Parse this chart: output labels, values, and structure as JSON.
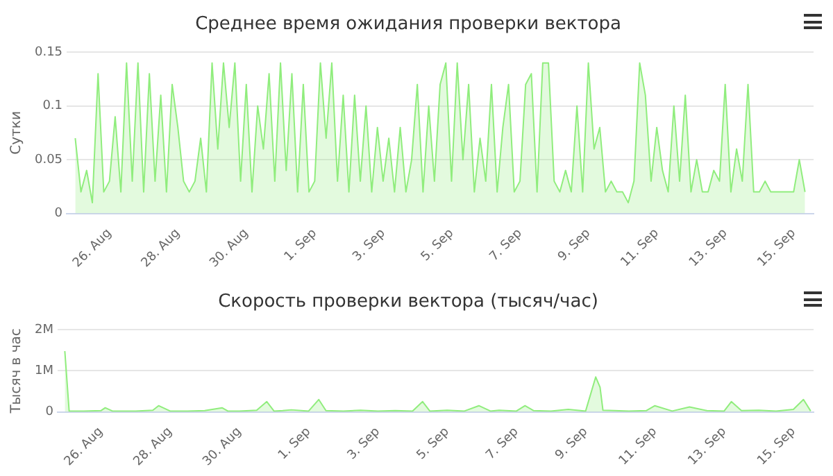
{
  "chart_data": [
    {
      "type": "area",
      "title": "Среднее время ожидания проверки вектора",
      "ylabel": "Сутки",
      "grid": "y",
      "xlim": [
        "--08-24T18:00",
        "--09-15T14:00"
      ],
      "ylim": [
        0,
        0.15
      ],
      "yticks": [
        0,
        0.05,
        0.1,
        0.15
      ],
      "xticks": [
        {
          "value": "--08-26",
          "label": "26. Aug"
        },
        {
          "value": "--08-28",
          "label": "28. Aug"
        },
        {
          "value": "--08-30",
          "label": "30. Aug"
        },
        {
          "value": "--09-01",
          "label": "1. Sep"
        },
        {
          "value": "--09-03",
          "label": "3. Sep"
        },
        {
          "value": "--09-05",
          "label": "5. Sep"
        },
        {
          "value": "--09-07",
          "label": "7. Sep"
        },
        {
          "value": "--09-09",
          "label": "9. Sep"
        },
        {
          "value": "--09-11",
          "label": "11. Sep"
        },
        {
          "value": "--09-13",
          "label": "13. Sep"
        },
        {
          "value": "--09-15",
          "label": "15. Sep"
        }
      ],
      "x": [
        "--08-25T00:00",
        "--08-25T04:00",
        "--08-25T08:00",
        "--08-25T12:00",
        "--08-25T16:00",
        "--08-25T20:00",
        "--08-26T00:00",
        "--08-26T04:00",
        "--08-26T08:00",
        "--08-26T12:00",
        "--08-26T16:00",
        "--08-26T20:00",
        "--08-27T00:00",
        "--08-27T04:00",
        "--08-27T08:00",
        "--08-27T12:00",
        "--08-27T16:00",
        "--08-27T20:00",
        "--08-28T00:00",
        "--08-28T04:00",
        "--08-28T08:00",
        "--08-28T12:00",
        "--08-28T16:00",
        "--08-28T20:00",
        "--08-29T00:00",
        "--08-29T04:00",
        "--08-29T08:00",
        "--08-29T12:00",
        "--08-29T16:00",
        "--08-29T20:00",
        "--08-30T00:00",
        "--08-30T04:00",
        "--08-30T08:00",
        "--08-30T12:00",
        "--08-30T16:00",
        "--08-30T20:00",
        "--08-31T00:00",
        "--08-31T04:00",
        "--08-31T08:00",
        "--08-31T12:00",
        "--08-31T16:00",
        "--08-31T20:00",
        "--09-01T00:00",
        "--09-01T04:00",
        "--09-01T08:00",
        "--09-01T12:00",
        "--09-01T16:00",
        "--09-01T20:00",
        "--09-02T00:00",
        "--09-02T04:00",
        "--09-02T08:00",
        "--09-02T12:00",
        "--09-02T16:00",
        "--09-02T20:00",
        "--09-03T00:00",
        "--09-03T04:00",
        "--09-03T08:00",
        "--09-03T12:00",
        "--09-03T16:00",
        "--09-03T20:00",
        "--09-04T00:00",
        "--09-04T04:00",
        "--09-04T08:00",
        "--09-04T12:00",
        "--09-04T16:00",
        "--09-04T20:00",
        "--09-05T00:00",
        "--09-05T04:00",
        "--09-05T08:00",
        "--09-05T12:00",
        "--09-05T16:00",
        "--09-05T20:00",
        "--09-06T00:00",
        "--09-06T04:00",
        "--09-06T08:00",
        "--09-06T12:00",
        "--09-06T16:00",
        "--09-06T20:00",
        "--09-07T00:00",
        "--09-07T04:00",
        "--09-07T08:00",
        "--09-07T12:00",
        "--09-07T16:00",
        "--09-07T20:00",
        "--09-08T00:00",
        "--09-08T04:00",
        "--09-08T08:00",
        "--09-08T12:00",
        "--09-08T16:00",
        "--09-08T20:00",
        "--09-09T00:00",
        "--09-09T04:00",
        "--09-09T08:00",
        "--09-09T12:00",
        "--09-09T16:00",
        "--09-09T20:00",
        "--09-10T00:00",
        "--09-10T04:00",
        "--09-10T08:00",
        "--09-10T12:00",
        "--09-10T16:00",
        "--09-10T20:00",
        "--09-11T00:00",
        "--09-11T04:00",
        "--09-11T08:00",
        "--09-11T12:00",
        "--09-11T16:00",
        "--09-11T20:00",
        "--09-12T00:00",
        "--09-12T04:00",
        "--09-12T08:00",
        "--09-12T12:00",
        "--09-12T16:00",
        "--09-12T20:00",
        "--09-13T00:00",
        "--09-13T04:00",
        "--09-13T08:00",
        "--09-13T12:00",
        "--09-13T16:00",
        "--09-13T20:00",
        "--09-14T00:00",
        "--09-14T04:00",
        "--09-14T08:00",
        "--09-14T12:00",
        "--09-14T16:00",
        "--09-14T20:00",
        "--09-15T00:00",
        "--09-15T04:00",
        "--09-15T08:00"
      ],
      "series": [
        {
          "color": "#90ed7d",
          "values": [
            0.07,
            0.02,
            0.04,
            0.01,
            0.13,
            0.02,
            0.03,
            0.09,
            0.02,
            0.14,
            0.03,
            0.14,
            0.02,
            0.13,
            0.03,
            0.11,
            0.02,
            0.12,
            0.08,
            0.03,
            0.02,
            0.03,
            0.07,
            0.02,
            0.14,
            0.06,
            0.14,
            0.08,
            0.14,
            0.03,
            0.12,
            0.02,
            0.1,
            0.06,
            0.13,
            0.03,
            0.14,
            0.04,
            0.13,
            0.02,
            0.12,
            0.02,
            0.03,
            0.14,
            0.07,
            0.14,
            0.03,
            0.11,
            0.02,
            0.11,
            0.03,
            0.1,
            0.02,
            0.08,
            0.03,
            0.07,
            0.02,
            0.08,
            0.02,
            0.05,
            0.12,
            0.02,
            0.1,
            0.03,
            0.12,
            0.14,
            0.03,
            0.14,
            0.05,
            0.12,
            0.02,
            0.07,
            0.03,
            0.12,
            0.02,
            0.08,
            0.12,
            0.02,
            0.03,
            0.12,
            0.13,
            0.02,
            0.14,
            0.14,
            0.03,
            0.02,
            0.04,
            0.02,
            0.1,
            0.02,
            0.14,
            0.06,
            0.08,
            0.02,
            0.03,
            0.02,
            0.02,
            0.01,
            0.03,
            0.14,
            0.11,
            0.03,
            0.08,
            0.04,
            0.02,
            0.1,
            0.03,
            0.11,
            0.02,
            0.05,
            0.02,
            0.02,
            0.04,
            0.03,
            0.12,
            0.02,
            0.06,
            0.03,
            0.12,
            0.02,
            0.02,
            0.03,
            0.02,
            0.02,
            0.02,
            0.02,
            0.02,
            0.05,
            0.02
          ]
        }
      ]
    },
    {
      "type": "area",
      "title": "Скорость проверки вектора (тысяч/час)",
      "ylabel": "Тысяч в час",
      "grid": "y",
      "xlim": [
        "--08-24T18:00",
        "--09-15T14:00"
      ],
      "ylim": [
        0,
        2000000
      ],
      "yticks": [
        0,
        {
          "value": 1000000,
          "label": "1M"
        },
        {
          "value": 2000000,
          "label": "2M"
        }
      ],
      "xticks": [
        {
          "value": "--08-26",
          "label": "26. Aug"
        },
        {
          "value": "--08-28",
          "label": "28. Aug"
        },
        {
          "value": "--08-30",
          "label": "30. Aug"
        },
        {
          "value": "--09-01",
          "label": "1. Sep"
        },
        {
          "value": "--09-03",
          "label": "3. Sep"
        },
        {
          "value": "--09-05",
          "label": "5. Sep"
        },
        {
          "value": "--09-07",
          "label": "7. Sep"
        },
        {
          "value": "--09-09",
          "label": "9. Sep"
        },
        {
          "value": "--09-11",
          "label": "11. Sep"
        },
        {
          "value": "--09-13",
          "label": "13. Sep"
        },
        {
          "value": "--09-15",
          "label": "15. Sep"
        }
      ],
      "x": [
        "--08-24T23:00",
        "--08-25T02:00",
        "--08-25T12:00",
        "--08-26T00:00",
        "--08-26T03:00",
        "--08-26T08:00",
        "--08-27T00:00",
        "--08-27T12:00",
        "--08-27T16:00",
        "--08-28T00:00",
        "--08-28T12:00",
        "--08-29T00:00",
        "--08-29T12:00",
        "--08-29T16:00",
        "--08-30T00:00",
        "--08-30T12:00",
        "--08-30T19:00",
        "--08-31T00:00",
        "--08-31T06:00",
        "--08-31T12:00",
        "--09-01T00:00",
        "--09-01T07:00",
        "--09-01T12:00",
        "--09-02T00:00",
        "--09-02T12:00",
        "--09-03T00:00",
        "--09-03T12:00",
        "--09-04T00:00",
        "--09-04T07:00",
        "--09-04T12:00",
        "--09-05T00:00",
        "--09-05T12:00",
        "--09-05T22:00",
        "--09-06T06:00",
        "--09-06T12:00",
        "--09-07T00:00",
        "--09-07T06:00",
        "--09-07T12:00",
        "--09-08T00:00",
        "--09-08T12:00",
        "--09-09T00:00",
        "--09-09T07:00",
        "--09-09T10:00",
        "--09-09T12:00",
        "--09-09T20:00",
        "--09-10T06:00",
        "--09-10T18:00",
        "--09-11T00:00",
        "--09-11T12:00",
        "--09-12T00:00",
        "--09-12T12:00",
        "--09-13T00:00",
        "--09-13T05:00",
        "--09-13T12:00",
        "--09-14T00:00",
        "--09-14T12:00",
        "--09-15T00:00",
        "--09-15T07:00",
        "--09-15T12:00"
      ],
      "series": [
        {
          "color": "#90ed7d",
          "values": [
            1480000,
            20000,
            20000,
            30000,
            100000,
            20000,
            20000,
            40000,
            150000,
            20000,
            20000,
            30000,
            100000,
            20000,
            20000,
            40000,
            250000,
            20000,
            30000,
            50000,
            20000,
            300000,
            30000,
            20000,
            40000,
            20000,
            30000,
            20000,
            250000,
            20000,
            40000,
            20000,
            150000,
            20000,
            40000,
            20000,
            150000,
            30000,
            20000,
            60000,
            20000,
            850000,
            600000,
            40000,
            30000,
            20000,
            30000,
            150000,
            20000,
            120000,
            30000,
            20000,
            250000,
            30000,
            40000,
            20000,
            60000,
            300000,
            20000
          ]
        }
      ]
    }
  ]
}
